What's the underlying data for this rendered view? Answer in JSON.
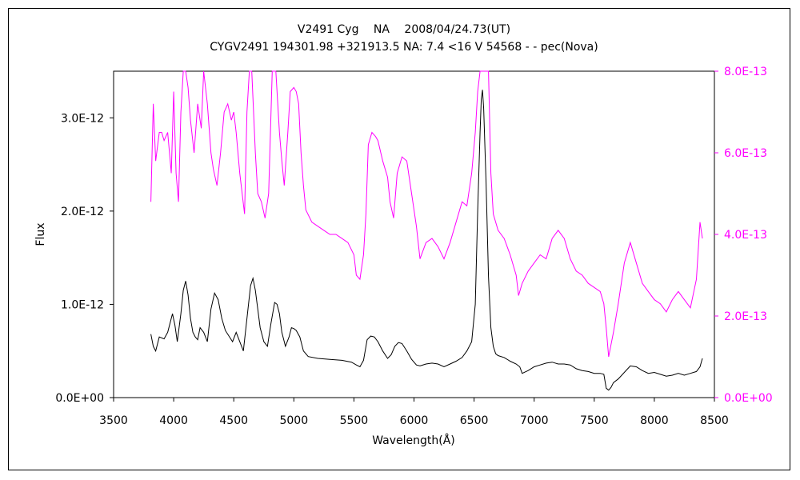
{
  "chart_data": {
    "type": "line",
    "title": "V2491 Cyg　 NA　 2008/04/24.73(UT)",
    "subtitle": "CYGV2491 194301.98 +321913.5 NA: 7.4 <16 V 54568 - - pec(Nova)",
    "xlabel": "Wavelength(Å)",
    "ylabel": "Flux",
    "xlim": [
      3500,
      8500
    ],
    "x_ticks": [
      "3500",
      "4000",
      "4500",
      "5000",
      "5500",
      "6000",
      "6500",
      "7000",
      "7500",
      "8000",
      "8500"
    ],
    "ylim_left": [
      0,
      3.5e-12
    ],
    "y_ticks_left": [
      "0.0E+00",
      "1.0E-12",
      "2.0E-12",
      "3.0E-12"
    ],
    "ylim_right": [
      0,
      8e-13
    ],
    "y_ticks_right": [
      "0.0E+00",
      "2.0E-13",
      "4.0E-13",
      "6.0E-13",
      "8.0E-13"
    ],
    "colors": {
      "left_axis": "#000000",
      "right_axis": "#ff00ff",
      "spectrum_main": "#000000",
      "spectrum_scaled": "#ff00ff"
    },
    "grid": false,
    "series": [
      {
        "axis": "left",
        "color": "#000000",
        "x": [
          3810,
          3830,
          3850,
          3880,
          3920,
          3950,
          3990,
          4010,
          4030,
          4060,
          4080,
          4100,
          4120,
          4140,
          4160,
          4180,
          4200,
          4220,
          4250,
          4280,
          4310,
          4340,
          4370,
          4400,
          4430,
          4460,
          4490,
          4520,
          4550,
          4580,
          4610,
          4640,
          4660,
          4680,
          4700,
          4720,
          4750,
          4780,
          4810,
          4840,
          4860,
          4880,
          4900,
          4930,
          4960,
          4980,
          5000,
          5020,
          5050,
          5080,
          5120,
          5200,
          5300,
          5400,
          5480,
          5520,
          5550,
          5580,
          5610,
          5640,
          5670,
          5700,
          5740,
          5780,
          5810,
          5840,
          5870,
          5900,
          5940,
          5980,
          6020,
          6050,
          6100,
          6150,
          6200,
          6250,
          6300,
          6350,
          6400,
          6440,
          6480,
          6510,
          6530,
          6550,
          6560,
          6570,
          6580,
          6590,
          6600,
          6620,
          6640,
          6660,
          6680,
          6700,
          6750,
          6800,
          6850,
          6880,
          6900,
          6950,
          7000,
          7050,
          7100,
          7150,
          7200,
          7250,
          7300,
          7350,
          7400,
          7450,
          7500,
          7550,
          7580,
          7600,
          7620,
          7640,
          7660,
          7700,
          7750,
          7800,
          7850,
          7900,
          7950,
          8000,
          8050,
          8100,
          8150,
          8200,
          8250,
          8300,
          8350,
          8380,
          8400
        ],
        "y": [
          6.8e-13,
          5.5e-13,
          5e-13,
          6.5e-13,
          6.3e-13,
          7e-13,
          9e-13,
          7.8e-13,
          6e-13,
          9e-13,
          1.15e-12,
          1.25e-12,
          1.1e-12,
          8.5e-13,
          7e-13,
          6.5e-13,
          6.2e-13,
          7.5e-13,
          7e-13,
          6e-13,
          9.5e-13,
          1.12e-12,
          1.05e-12,
          8.5e-13,
          7.2e-13,
          6.6e-13,
          6e-13,
          7e-13,
          6e-13,
          5e-13,
          8.5e-13,
          1.2e-12,
          1.28e-12,
          1.15e-12,
          9.5e-13,
          7.5e-13,
          6e-13,
          5.5e-13,
          8e-13,
          1.02e-12,
          1e-12,
          9e-13,
          7e-13,
          5.5e-13,
          6.5e-13,
          7.5e-13,
          7.4e-13,
          7.2e-13,
          6.5e-13,
          5e-13,
          4.4e-13,
          4.2e-13,
          4.1e-13,
          4e-13,
          3.8e-13,
          3.5e-13,
          3.3e-13,
          4e-13,
          6.2e-13,
          6.6e-13,
          6.5e-13,
          6e-13,
          5e-13,
          4.2e-13,
          4.6e-13,
          5.5e-13,
          5.9e-13,
          5.8e-13,
          5e-13,
          4.1e-13,
          3.5e-13,
          3.4e-13,
          3.6e-13,
          3.7e-13,
          3.6e-13,
          3.3e-13,
          3.6e-13,
          3.9e-13,
          4.3e-13,
          5e-13,
          6e-13,
          1e-12,
          2e-12,
          2.85e-12,
          3.2e-12,
          3.3e-12,
          3.1e-12,
          2.7e-12,
          2.3e-12,
          1.3e-12,
          7.5e-13,
          5.5e-13,
          4.7e-13,
          4.5e-13,
          4.3e-13,
          3.9e-13,
          3.6e-13,
          3.3e-13,
          2.6e-13,
          2.9e-13,
          3.3e-13,
          3.5e-13,
          3.7e-13,
          3.8e-13,
          3.6e-13,
          3.6e-13,
          3.5e-13,
          3.1e-13,
          2.9e-13,
          2.8e-13,
          2.6e-13,
          2.6e-13,
          2.5e-13,
          1e-13,
          8e-14,
          1.1e-13,
          1.6e-13,
          2e-13,
          2.7e-13,
          3.4e-13,
          3.3e-13,
          2.9e-13,
          2.6e-13,
          2.7e-13,
          2.5e-13,
          2.3e-13,
          2.4e-13,
          2.6e-13,
          2.4e-13,
          2.6e-13,
          2.8e-13,
          3.3e-13,
          4.2e-13
        ]
      },
      {
        "axis": "right",
        "color": "#ff00ff",
        "x": [
          3810,
          3830,
          3850,
          3880,
          3900,
          3920,
          3950,
          3980,
          4000,
          4020,
          4040,
          4060,
          4080,
          4100,
          4120,
          4140,
          4170,
          4200,
          4230,
          4250,
          4280,
          4310,
          4330,
          4360,
          4390,
          4420,
          4450,
          4480,
          4500,
          4520,
          4550,
          4570,
          4590,
          4610,
          4630,
          4650,
          4680,
          4700,
          4730,
          4760,
          4790,
          4820,
          4850,
          4880,
          4900,
          4920,
          4950,
          4970,
          5000,
          5020,
          5040,
          5060,
          5080,
          5100,
          5150,
          5200,
          5250,
          5300,
          5350,
          5400,
          5450,
          5500,
          5520,
          5550,
          5580,
          5600,
          5620,
          5650,
          5680,
          5700,
          5740,
          5780,
          5800,
          5830,
          5860,
          5900,
          5940,
          5980,
          6020,
          6050,
          6100,
          6150,
          6200,
          6250,
          6300,
          6350,
          6400,
          6440,
          6480,
          6510,
          6530,
          6550,
          6620,
          6640,
          6660,
          6700,
          6750,
          6800,
          6850,
          6870,
          6900,
          6950,
          7000,
          7050,
          7100,
          7150,
          7200,
          7250,
          7300,
          7350,
          7400,
          7450,
          7500,
          7550,
          7580,
          7600,
          7620,
          7640,
          7660,
          7700,
          7750,
          7800,
          7850,
          7900,
          7950,
          8000,
          8050,
          8100,
          8150,
          8200,
          8250,
          8300,
          8350,
          8380,
          8400
        ],
        "y": [
          4.8e-13,
          7.2e-13,
          5.8e-13,
          6.5e-13,
          6.5e-13,
          6.3e-13,
          6.5e-13,
          5.5e-13,
          7.5e-13,
          5.5e-13,
          4.8e-13,
          7e-13,
          8e-13,
          8e-13,
          7.6e-13,
          6.8e-13,
          6e-13,
          7.2e-13,
          6.6e-13,
          8e-13,
          7.2e-13,
          6e-13,
          5.6e-13,
          5.2e-13,
          6e-13,
          7e-13,
          7.2e-13,
          6.8e-13,
          7e-13,
          6.5e-13,
          5.5e-13,
          5e-13,
          4.5e-13,
          7e-13,
          8e-13,
          8e-13,
          6e-13,
          5e-13,
          4.8e-13,
          4.4e-13,
          5e-13,
          8e-13,
          8e-13,
          6.5e-13,
          5.8e-13,
          5.2e-13,
          6.5e-13,
          7.5e-13,
          7.6e-13,
          7.5e-13,
          7.2e-13,
          6e-13,
          5.2e-13,
          4.6e-13,
          4.3e-13,
          4.2e-13,
          4.1e-13,
          4e-13,
          4e-13,
          3.9e-13,
          3.8e-13,
          3.5e-13,
          3e-13,
          2.9e-13,
          3.5e-13,
          4.5e-13,
          6.2e-13,
          6.5e-13,
          6.4e-13,
          6.3e-13,
          5.8e-13,
          5.4e-13,
          4.8e-13,
          4.4e-13,
          5.5e-13,
          5.9e-13,
          5.8e-13,
          5e-13,
          4.2e-13,
          3.4e-13,
          3.8e-13,
          3.9e-13,
          3.7e-13,
          3.4e-13,
          3.8e-13,
          4.3e-13,
          4.8e-13,
          4.7e-13,
          5.5e-13,
          6.5e-13,
          7.5e-13,
          8e-13,
          8e-13,
          5.5e-13,
          4.5e-13,
          4.1e-13,
          3.9e-13,
          3.5e-13,
          3e-13,
          2.5e-13,
          2.8e-13,
          3.1e-13,
          3.3e-13,
          3.5e-13,
          3.4e-13,
          3.9e-13,
          4.1e-13,
          3.9e-13,
          3.4e-13,
          3.1e-13,
          3e-13,
          2.8e-13,
          2.7e-13,
          2.6e-13,
          2.3e-13,
          1.7e-13,
          1e-13,
          1.3e-13,
          1.6e-13,
          2.3e-13,
          3.3e-13,
          3.8e-13,
          3.3e-13,
          2.8e-13,
          2.6e-13,
          2.4e-13,
          2.3e-13,
          2.1e-13,
          2.4e-13,
          2.6e-13,
          2.4e-13,
          2.2e-13,
          2.9e-13,
          4.3e-13,
          3.9e-13
        ]
      }
    ]
  }
}
